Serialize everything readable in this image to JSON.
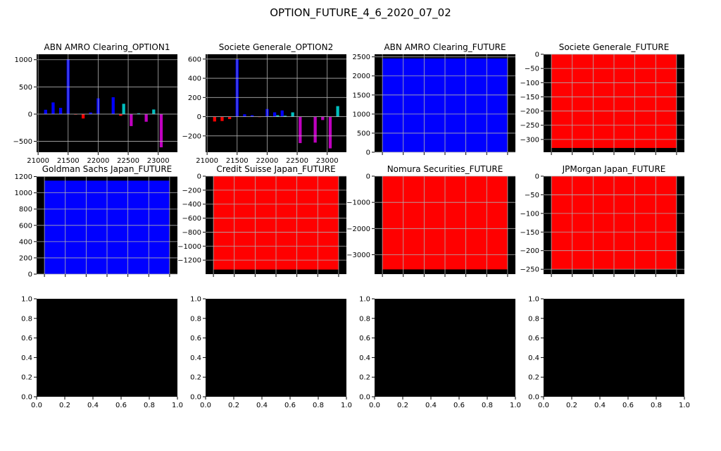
{
  "title": "OPTION_FUTURE_4_6_2020_07_02",
  "colors": {
    "call_pos": "#0000ff",
    "call_neg": "#ff0000",
    "put_pos": "#00bfbf",
    "put_neg": "#bf00bf",
    "future_pos": "#0000ff",
    "future_neg": "#ff0000",
    "background": "#000000"
  },
  "chart_data": [
    {
      "type": "bar",
      "title": "ABN AMRO Clearing_OPTION1",
      "xlim": [
        20975,
        23320
      ],
      "ylim": [
        -700,
        1100
      ],
      "xticks": [
        21000,
        21500,
        22000,
        22500,
        23000
      ],
      "yticks": [
        -500,
        0,
        500,
        1000
      ],
      "grid": true,
      "bars": [
        [
          21125,
          80,
          "call"
        ],
        [
          21250,
          215,
          "call"
        ],
        [
          21375,
          115,
          "call"
        ],
        [
          21500,
          1010,
          "call"
        ],
        [
          21625,
          -10,
          "call"
        ],
        [
          21750,
          -80,
          "call"
        ],
        [
          21875,
          30,
          "call"
        ],
        [
          22000,
          290,
          "call"
        ],
        [
          22250,
          310,
          "call"
        ],
        [
          22375,
          -30,
          "call"
        ],
        [
          22425,
          190,
          "put"
        ],
        [
          22550,
          -220,
          "put"
        ],
        [
          22675,
          15,
          "put"
        ],
        [
          22800,
          -140,
          "put"
        ],
        [
          22925,
          85,
          "put"
        ],
        [
          23050,
          -610,
          "put"
        ]
      ]
    },
    {
      "type": "bar",
      "title": "Societe Generale_OPTION2",
      "xlim": [
        20975,
        23320
      ],
      "ylim": [
        -370,
        650
      ],
      "xticks": [
        21000,
        21500,
        22000,
        22500,
        23000
      ],
      "yticks": [
        -200,
        0,
        200,
        400,
        600
      ],
      "grid": true,
      "bars": [
        [
          21125,
          -50,
          "call"
        ],
        [
          21250,
          -45,
          "call"
        ],
        [
          21375,
          -25,
          "call"
        ],
        [
          21500,
          600,
          "call"
        ],
        [
          21625,
          25,
          "call"
        ],
        [
          21750,
          15,
          "call"
        ],
        [
          21875,
          -5,
          "call"
        ],
        [
          22000,
          80,
          "call"
        ],
        [
          22050,
          5,
          "put"
        ],
        [
          22125,
          45,
          "call"
        ],
        [
          22175,
          15,
          "put"
        ],
        [
          22250,
          65,
          "call"
        ],
        [
          22300,
          10,
          "put"
        ],
        [
          22425,
          45,
          "put"
        ],
        [
          22550,
          -275,
          "put"
        ],
        [
          22800,
          -270,
          "put"
        ],
        [
          22925,
          -35,
          "put"
        ],
        [
          23050,
          -330,
          "put"
        ],
        [
          23175,
          110,
          "put"
        ]
      ]
    },
    {
      "type": "bar",
      "title": "ABN AMRO Clearing_FUTURE",
      "ylim": [
        0,
        2568
      ],
      "yticks": [
        0,
        500,
        1000,
        1500,
        2000,
        2500
      ],
      "value": 2460,
      "grid": true
    },
    {
      "type": "bar",
      "title": "Societe Generale_FUTURE",
      "ylim": [
        -345,
        0
      ],
      "yticks": [
        -300,
        -250,
        -200,
        -150,
        -100,
        -50,
        0
      ],
      "value": -330,
      "grid": true
    },
    {
      "type": "bar",
      "title": "Goldman Sachs Japan_FUTURE",
      "ylim": [
        0,
        1205
      ],
      "yticks": [
        0,
        200,
        400,
        600,
        800,
        1000,
        1200
      ],
      "value": 1150,
      "grid": true
    },
    {
      "type": "bar",
      "title": "Credit Suisse Japan_FUTURE",
      "ylim": [
        -1400,
        0
      ],
      "yticks": [
        -1200,
        -1000,
        -800,
        -600,
        -400,
        -200,
        0
      ],
      "value": -1335,
      "grid": true
    },
    {
      "type": "bar",
      "title": "Nomura Securities_FUTURE",
      "ylim": [
        -3740,
        0
      ],
      "yticks": [
        -3000,
        -2000,
        -1000,
        0
      ],
      "value": -3560,
      "grid": true
    },
    {
      "type": "bar",
      "title": "JPMorgan Japan_FUTURE",
      "ylim": [
        -263,
        0
      ],
      "yticks": [
        -250,
        -200,
        -150,
        -100,
        -50,
        0
      ],
      "value": -250,
      "grid": true
    },
    {
      "type": "empty",
      "title": "",
      "xlim": [
        0,
        1
      ],
      "ylim": [
        0,
        1
      ],
      "ticks": [
        "0.0",
        "0.2",
        "0.4",
        "0.6",
        "0.8",
        "1.0"
      ]
    },
    {
      "type": "empty",
      "title": "",
      "xlim": [
        0,
        1
      ],
      "ylim": [
        0,
        1
      ],
      "ticks": [
        "0.0",
        "0.2",
        "0.4",
        "0.6",
        "0.8",
        "1.0"
      ]
    },
    {
      "type": "empty",
      "title": "",
      "xlim": [
        0,
        1
      ],
      "ylim": [
        0,
        1
      ],
      "ticks": [
        "0.0",
        "0.2",
        "0.4",
        "0.6",
        "0.8",
        "1.0"
      ]
    },
    {
      "type": "empty",
      "title": "",
      "xlim": [
        0,
        1
      ],
      "ylim": [
        0,
        1
      ],
      "ticks": [
        "0.0",
        "0.2",
        "0.4",
        "0.6",
        "0.8",
        "1.0"
      ]
    }
  ]
}
